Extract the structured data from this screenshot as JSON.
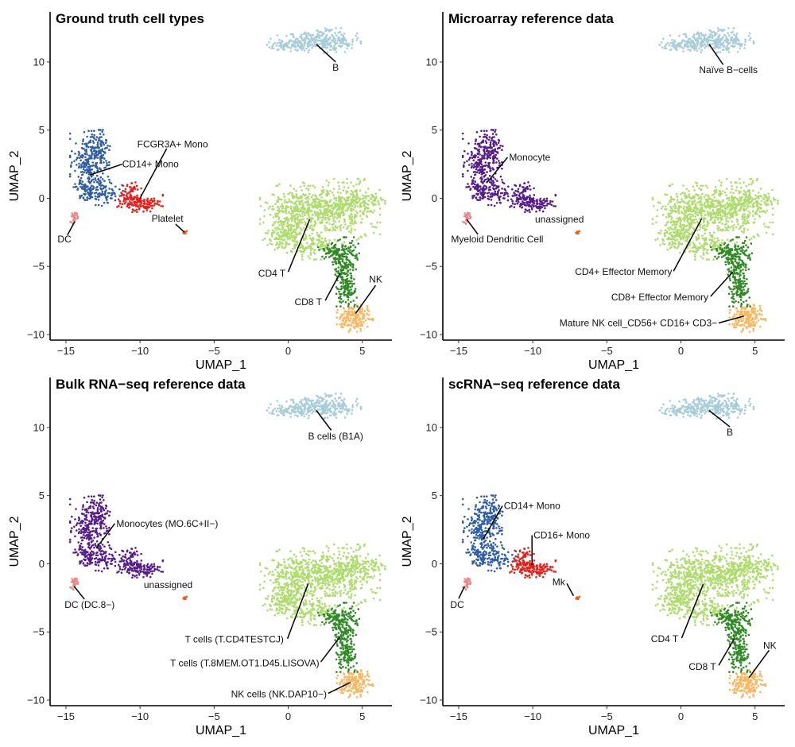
{
  "chart_data": {
    "type": "scatter",
    "xlim": [
      -16.07,
      7.0
    ],
    "ylim": [
      -10.41,
      13.67
    ],
    "xticks": [
      -15,
      -10,
      -5,
      0,
      5
    ],
    "yticks": [
      -10,
      -5,
      0,
      5,
      10
    ],
    "embedding_clusters": {
      "B": {
        "n": 360,
        "blobs": [
          [
            1.2,
            11.4,
            1.2,
            0.35,
            0.5
          ],
          [
            2.7,
            11.6,
            1.0,
            0.4,
            0.4
          ],
          [
            -0.2,
            11.3,
            0.5,
            0.18,
            0.1
          ]
        ]
      },
      "CD14_mono": {
        "n": 470,
        "blobs": [
          [
            -13.4,
            2.3,
            0.6,
            1.2,
            0.5
          ],
          [
            -12.8,
            3.7,
            0.35,
            0.6,
            0.2
          ],
          [
            -12.3,
            0.4,
            0.8,
            0.45,
            0.2
          ],
          [
            -13.6,
            0.6,
            0.4,
            0.5,
            0.1
          ]
        ]
      },
      "FCGR3A_mono": {
        "n": 190,
        "blobs": [
          [
            -10.0,
            -0.35,
            0.7,
            0.3,
            0.7
          ],
          [
            -10.8,
            0.3,
            0.4,
            0.45,
            0.3
          ]
        ]
      },
      "DC": {
        "n": 26,
        "blobs": [
          [
            -14.45,
            -1.35,
            0.12,
            0.3,
            1.0
          ]
        ]
      },
      "Platelet": {
        "n": 9,
        "blobs": [
          [
            -7.0,
            -2.5,
            0.07,
            0.05,
            1.0
          ]
        ]
      },
      "CD4_T": {
        "n": 1150,
        "blobs": [
          [
            0.3,
            -1.5,
            1.0,
            1.1,
            0.25
          ],
          [
            2.0,
            -0.6,
            1.3,
            0.8,
            0.3
          ],
          [
            4.0,
            -1.0,
            1.0,
            1.1,
            0.2
          ],
          [
            -0.4,
            -2.9,
            0.5,
            0.5,
            0.07
          ],
          [
            5.0,
            -0.2,
            0.7,
            0.35,
            0.08
          ],
          [
            1.6,
            -3.4,
            0.7,
            0.5,
            0.1
          ]
        ]
      },
      "CD8_T": {
        "n": 340,
        "blobs": [
          [
            3.8,
            -4.4,
            0.45,
            0.7,
            0.45
          ],
          [
            3.9,
            -6.4,
            0.35,
            0.7,
            0.4
          ],
          [
            2.9,
            -3.9,
            0.4,
            0.3,
            0.15
          ]
        ]
      },
      "NK": {
        "n": 170,
        "blobs": [
          [
            4.5,
            -8.8,
            0.55,
            0.45,
            1.0
          ]
        ]
      }
    },
    "panels": [
      {
        "title": "Ground truth cell types",
        "xlabel": "UMAP_1",
        "ylabel": "UMAP_2",
        "colors": {
          "B": "#a6cdd9",
          "CD14_mono": "#2e5ea6",
          "FCGR3A_mono": "#ee1a12",
          "DC": "#f28484",
          "Platelet": "#ef5b16",
          "CD4_T": "#aedc6c",
          "CD8_T": "#2f8a24",
          "NK": "#fdb55b"
        },
        "annotations": [
          {
            "text": "B",
            "tx": 3.2,
            "ty": 9.6,
            "anchor": "middle",
            "line": [
              1.9,
              11.3,
              3.2,
              10.0
            ]
          },
          {
            "text": "FCGR3A+ Mono",
            "tx": -7.8,
            "ty": 3.95,
            "anchor": "middle",
            "line": [
              -10.0,
              0.0,
              -8.2,
              3.65
            ]
          },
          {
            "text": "CD14+ Mono",
            "tx": -11.2,
            "ty": 2.5,
            "anchor": "start",
            "line": [
              -13.4,
              1.7,
              -11.2,
              2.5
            ]
          },
          {
            "text": "DC",
            "tx": -15.1,
            "ty": -3.0,
            "anchor": "middle",
            "line": [
              -14.4,
              -1.7,
              -14.9,
              -2.7
            ]
          },
          {
            "text": "Platelet",
            "tx": -8.15,
            "ty": -1.5,
            "anchor": "middle",
            "line": [
              -7.6,
              -1.9,
              -7.0,
              -2.5
            ]
          },
          {
            "text": "CD4 T",
            "tx": -1.1,
            "ty": -5.5,
            "anchor": "middle",
            "line": [
              0.0,
              -5.4,
              1.45,
              -1.55
            ]
          },
          {
            "text": "CD8 T",
            "tx": 1.35,
            "ty": -7.6,
            "anchor": "middle",
            "line": [
              2.5,
              -7.5,
              3.5,
              -5.5
            ]
          },
          {
            "text": "NK",
            "tx": 5.9,
            "ty": -5.95,
            "anchor": "middle",
            "line": [
              5.9,
              -6.4,
              4.55,
              -8.45
            ]
          }
        ]
      },
      {
        "title": "Microarray reference data",
        "xlabel": "UMAP_1",
        "ylabel": "UMAP_2",
        "colors": {
          "B": "#a6cdd9",
          "CD14_mono": "#561c8c",
          "FCGR3A_mono": "#561c8c",
          "DC": "#f28484",
          "Platelet": "#ef5b16",
          "CD4_T": "#aedc6c",
          "CD8_T": "#2f8a24",
          "NK": "#fdb55b"
        },
        "annotations": [
          {
            "text": "Naïve B−cells",
            "tx": 3.2,
            "ty": 9.4,
            "anchor": "middle",
            "line": [
              1.9,
              11.3,
              2.85,
              9.8
            ]
          },
          {
            "text": "Monocyte",
            "tx": -11.6,
            "ty": 3.0,
            "anchor": "start",
            "line": [
              -13.05,
              1.2,
              -11.7,
              3.0
            ]
          },
          {
            "text": "Myeloid Dendritic Cell",
            "tx": -12.4,
            "ty": -3.0,
            "anchor": "middle",
            "line": [
              -14.45,
              -1.55,
              -13.7,
              -2.65
            ]
          },
          {
            "text": "unassigned",
            "tx": -8.2,
            "ty": -1.55,
            "anchor": "middle",
            "line": null
          },
          {
            "text": "CD4+ Effector Memory",
            "tx": -0.6,
            "ty": -5.4,
            "anchor": "end",
            "line": [
              -0.5,
              -5.35,
              1.4,
              -1.5
            ]
          },
          {
            "text": "CD8+ Effector Memory",
            "tx": 1.85,
            "ty": -7.25,
            "anchor": "end",
            "line": [
              2.0,
              -7.2,
              3.5,
              -5.4
            ]
          },
          {
            "text": "Mature NK cell_CD56+ CD16+ CD3−",
            "tx": 2.45,
            "ty": -9.15,
            "anchor": "end",
            "line": [
              2.55,
              -9.15,
              4.25,
              -8.65
            ]
          }
        ]
      },
      {
        "title": "Bulk RNA−seq reference data",
        "xlabel": "UMAP_1",
        "ylabel": "UMAP_2",
        "colors": {
          "B": "#a6cdd9",
          "CD14_mono": "#561c8c",
          "FCGR3A_mono": "#561c8c",
          "DC": "#f28484",
          "Platelet": "#ef5b16",
          "CD4_T": "#aedc6c",
          "CD8_T": "#2f8a24",
          "NK": "#fdb55b"
        },
        "annotations": [
          {
            "text": "B cells (B1A)",
            "tx": 3.2,
            "ty": 9.35,
            "anchor": "middle",
            "line": [
              1.9,
              11.25,
              2.9,
              9.8
            ]
          },
          {
            "text": "Monocytes (MO.6C+II−)",
            "tx": -11.6,
            "ty": 2.95,
            "anchor": "start",
            "line": [
              -12.95,
              1.15,
              -11.7,
              2.95
            ]
          },
          {
            "text": "DC (DC.8−)",
            "tx": -13.4,
            "ty": -3.0,
            "anchor": "middle",
            "line": [
              -14.45,
              -1.65,
              -13.75,
              -2.6
            ]
          },
          {
            "text": "unassigned",
            "tx": -8.1,
            "ty": -1.55,
            "anchor": "middle",
            "line": null
          },
          {
            "text": "T cells (T.CD4TESTCJ)",
            "tx": -0.3,
            "ty": -5.55,
            "anchor": "end",
            "line": [
              -0.05,
              -5.5,
              1.35,
              -1.45
            ]
          },
          {
            "text": "T cells (T.8MEM.OT1.D45.LISOVA)",
            "tx": 2.1,
            "ty": -7.3,
            "anchor": "end",
            "line": [
              2.2,
              -7.2,
              3.5,
              -5.35
            ]
          },
          {
            "text": "NK cells (NK.DAP10−)",
            "tx": 2.6,
            "ty": -9.55,
            "anchor": "end",
            "line": [
              2.7,
              -9.5,
              4.2,
              -8.7
            ]
          }
        ]
      },
      {
        "title": "scRNA−seq reference data",
        "xlabel": "UMAP_1",
        "ylabel": "UMAP_2",
        "colors": {
          "B": "#a6cdd9",
          "CD14_mono": "#2e5ea6",
          "FCGR3A_mono": "#ee1a12",
          "DC": "#f28484",
          "Platelet": "#ef5b16",
          "CD4_T": "#aedc6c",
          "CD8_T": "#2f8a24",
          "NK": "#fdb55b"
        },
        "annotations": [
          {
            "text": "B",
            "tx": 3.3,
            "ty": 9.65,
            "anchor": "middle",
            "line": [
              1.9,
              11.25,
              3.3,
              10.05
            ]
          },
          {
            "text": "CD14+ Mono",
            "tx": -11.95,
            "ty": 4.25,
            "anchor": "start",
            "line": [
              -13.35,
              1.8,
              -12.05,
              4.25
            ]
          },
          {
            "text": "CD16+ Mono",
            "tx": -9.95,
            "ty": 2.1,
            "anchor": "start",
            "line": [
              -10.05,
              2.1,
              -10.05,
              -0.1
            ]
          },
          {
            "text": "Mk",
            "tx": -8.25,
            "ty": -1.35,
            "anchor": "middle",
            "line": [
              -7.7,
              -1.45,
              -7.25,
              -2.35
            ]
          },
          {
            "text": "DC",
            "tx": -15.1,
            "ty": -3.0,
            "anchor": "middle",
            "line": [
              -15.0,
              -2.55,
              -14.6,
              -1.65
            ]
          },
          {
            "text": "CD4 T",
            "tx": -1.1,
            "ty": -5.5,
            "anchor": "middle",
            "line": [
              0.05,
              -5.45,
              1.5,
              -1.5
            ]
          },
          {
            "text": "CD8 T",
            "tx": 1.45,
            "ty": -7.55,
            "anchor": "middle",
            "line": [
              2.55,
              -7.45,
              3.6,
              -5.5
            ]
          },
          {
            "text": "NK",
            "tx": 6.0,
            "ty": -6.0,
            "anchor": "middle",
            "line": [
              5.95,
              -6.35,
              4.6,
              -8.35
            ]
          }
        ]
      }
    ]
  }
}
